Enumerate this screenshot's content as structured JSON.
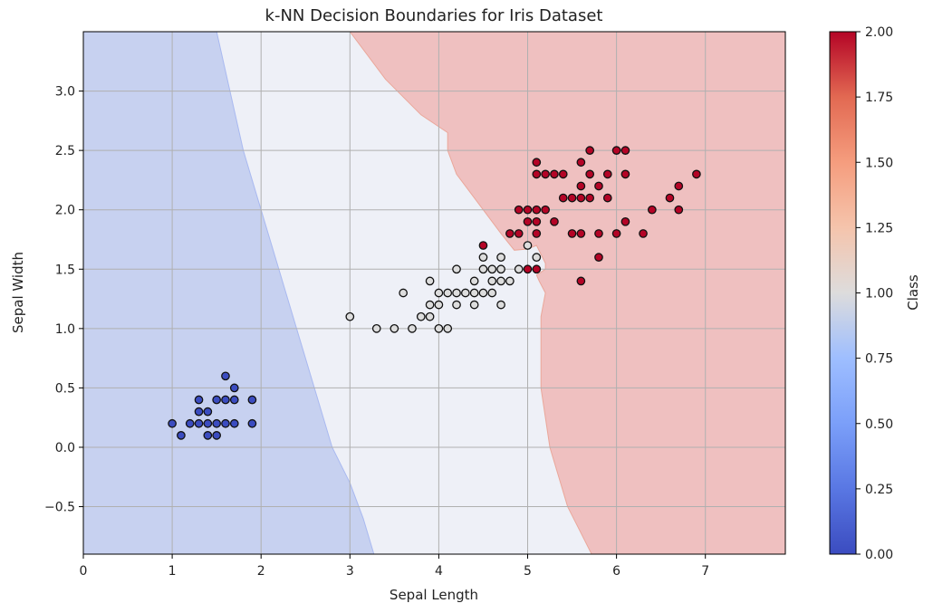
{
  "chart_data": {
    "type": "scatter",
    "title": "k-NN Decision Boundaries for Iris Dataset",
    "xlabel": "Sepal Length",
    "ylabel": "Sepal Width",
    "xlim": [
      0,
      7.9
    ],
    "ylim": [
      -0.9,
      3.5
    ],
    "x_ticks": [
      0,
      1,
      2,
      3,
      4,
      5,
      6,
      7
    ],
    "y_ticks": [
      -0.5,
      0.0,
      0.5,
      1.0,
      1.5,
      2.0,
      2.5,
      3.0
    ],
    "x_tick_labels": [
      "0",
      "1",
      "2",
      "3",
      "4",
      "5",
      "6",
      "7"
    ],
    "y_tick_labels": [
      "−0.5",
      "0.0",
      "0.5",
      "1.0",
      "1.5",
      "2.0",
      "2.5",
      "3.0"
    ],
    "grid": true,
    "colorbar": {
      "label": "Class",
      "range": [
        0,
        2
      ],
      "ticks": [
        0.0,
        0.25,
        0.5,
        0.75,
        1.0,
        1.25,
        1.5,
        1.75,
        2.0
      ],
      "tick_labels": [
        "0.00",
        "0.25",
        "0.50",
        "0.75",
        "1.00",
        "1.25",
        "1.50",
        "1.75",
        "2.00"
      ],
      "colormap": "coolwarm"
    },
    "region_colors": {
      "0": "#c7d1f0",
      "1": "#eef0f7",
      "2": "#efc0c0"
    },
    "point_colors": {
      "0": "#3b4cc0",
      "1": "#dddddd",
      "2": "#b40426"
    },
    "boundaries": {
      "class0_class1": [
        [
          1.5,
          3.5
        ],
        [
          1.8,
          2.5
        ],
        [
          2.0,
          2.0
        ],
        [
          2.2,
          1.5
        ],
        [
          2.4,
          1.0
        ],
        [
          2.6,
          0.5
        ],
        [
          2.8,
          0.0
        ],
        [
          3.0,
          -0.3
        ],
        [
          3.15,
          -0.6
        ],
        [
          3.27,
          -0.9
        ]
      ],
      "class1_class2": [
        [
          3.0,
          3.5
        ],
        [
          3.4,
          3.1
        ],
        [
          3.8,
          2.8
        ],
        [
          4.1,
          2.65
        ],
        [
          4.1,
          2.5
        ],
        [
          4.2,
          2.3
        ],
        [
          4.5,
          2.0
        ],
        [
          4.7,
          1.8
        ],
        [
          4.85,
          1.66
        ],
        [
          5.0,
          1.67
        ],
        [
          5.1,
          1.7
        ],
        [
          5.2,
          1.55
        ],
        [
          5.2,
          1.5
        ],
        [
          5.1,
          1.45
        ],
        [
          5.13,
          1.4
        ],
        [
          5.2,
          1.3
        ],
        [
          5.15,
          1.1
        ],
        [
          5.15,
          0.5
        ],
        [
          5.25,
          0.0
        ],
        [
          5.45,
          -0.5
        ],
        [
          5.72,
          -0.9
        ]
      ]
    },
    "series": [
      {
        "class": 0,
        "points": [
          [
            1.0,
            0.2
          ],
          [
            1.1,
            0.1
          ],
          [
            1.2,
            0.2
          ],
          [
            1.3,
            0.2
          ],
          [
            1.3,
            0.3
          ],
          [
            1.3,
            0.4
          ],
          [
            1.4,
            0.1
          ],
          [
            1.4,
            0.2
          ],
          [
            1.4,
            0.3
          ],
          [
            1.5,
            0.1
          ],
          [
            1.5,
            0.2
          ],
          [
            1.5,
            0.4
          ],
          [
            1.6,
            0.2
          ],
          [
            1.6,
            0.4
          ],
          [
            1.6,
            0.6
          ],
          [
            1.7,
            0.2
          ],
          [
            1.7,
            0.4
          ],
          [
            1.7,
            0.5
          ],
          [
            1.9,
            0.2
          ],
          [
            1.9,
            0.4
          ]
        ]
      },
      {
        "class": 1,
        "points": [
          [
            3.0,
            1.1
          ],
          [
            3.3,
            1.0
          ],
          [
            3.5,
            1.0
          ],
          [
            3.6,
            1.3
          ],
          [
            3.7,
            1.0
          ],
          [
            3.8,
            1.1
          ],
          [
            3.9,
            1.1
          ],
          [
            3.9,
            1.2
          ],
          [
            3.9,
            1.4
          ],
          [
            4.0,
            1.0
          ],
          [
            4.0,
            1.2
          ],
          [
            4.0,
            1.3
          ],
          [
            4.1,
            1.0
          ],
          [
            4.1,
            1.3
          ],
          [
            4.2,
            1.2
          ],
          [
            4.2,
            1.3
          ],
          [
            4.2,
            1.5
          ],
          [
            4.3,
            1.3
          ],
          [
            4.4,
            1.2
          ],
          [
            4.4,
            1.3
          ],
          [
            4.4,
            1.4
          ],
          [
            4.5,
            1.3
          ],
          [
            4.5,
            1.5
          ],
          [
            4.5,
            1.6
          ],
          [
            4.6,
            1.3
          ],
          [
            4.6,
            1.4
          ],
          [
            4.6,
            1.5
          ],
          [
            4.7,
            1.2
          ],
          [
            4.7,
            1.4
          ],
          [
            4.7,
            1.5
          ],
          [
            4.7,
            1.6
          ],
          [
            4.8,
            1.4
          ],
          [
            4.9,
            1.5
          ],
          [
            5.0,
            1.7
          ],
          [
            5.1,
            1.6
          ]
        ]
      },
      {
        "class": 2,
        "points": [
          [
            4.5,
            1.7
          ],
          [
            4.8,
            1.8
          ],
          [
            4.9,
            1.8
          ],
          [
            4.9,
            2.0
          ],
          [
            5.0,
            1.5
          ],
          [
            5.0,
            2.0
          ],
          [
            5.0,
            1.9
          ],
          [
            5.1,
            1.5
          ],
          [
            5.1,
            1.8
          ],
          [
            5.1,
            1.9
          ],
          [
            5.1,
            2.0
          ],
          [
            5.1,
            2.3
          ],
          [
            5.1,
            2.4
          ],
          [
            5.2,
            2.0
          ],
          [
            5.2,
            2.3
          ],
          [
            5.3,
            1.9
          ],
          [
            5.3,
            2.3
          ],
          [
            5.4,
            2.1
          ],
          [
            5.4,
            2.3
          ],
          [
            5.5,
            1.8
          ],
          [
            5.5,
            2.1
          ],
          [
            5.6,
            1.4
          ],
          [
            5.6,
            1.8
          ],
          [
            5.6,
            2.1
          ],
          [
            5.6,
            2.2
          ],
          [
            5.6,
            2.4
          ],
          [
            5.7,
            2.1
          ],
          [
            5.7,
            2.3
          ],
          [
            5.7,
            2.5
          ],
          [
            5.8,
            1.6
          ],
          [
            5.8,
            1.8
          ],
          [
            5.8,
            2.2
          ],
          [
            5.9,
            2.1
          ],
          [
            5.9,
            2.3
          ],
          [
            6.0,
            1.8
          ],
          [
            6.0,
            2.5
          ],
          [
            6.1,
            1.9
          ],
          [
            6.1,
            2.3
          ],
          [
            6.1,
            2.5
          ],
          [
            6.3,
            1.8
          ],
          [
            6.4,
            2.0
          ],
          [
            6.6,
            2.1
          ],
          [
            6.7,
            2.0
          ],
          [
            6.7,
            2.2
          ],
          [
            6.9,
            2.3
          ]
        ]
      }
    ]
  }
}
